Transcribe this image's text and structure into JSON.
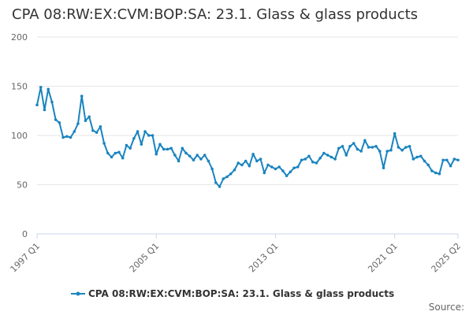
{
  "page": {
    "source_label": "Source:"
  },
  "chart_data": {
    "type": "line",
    "title": "CPA 08:RW:EX:CVM:BOP:SA: 23.1. Glass & glass products",
    "xlabel": "",
    "ylabel": "",
    "ylim": [
      0,
      200
    ],
    "yticks": [
      0,
      50,
      100,
      150,
      200
    ],
    "x_tick_labels": [
      "1997 Q1",
      "2005 Q1",
      "2013 Q1",
      "2021 Q1",
      "2025 Q2"
    ],
    "x_tick_index": [
      0,
      32,
      64,
      96,
      113
    ],
    "grid": "horizontal",
    "legend": "bottom-center",
    "colors": {
      "series": "#1a84bf",
      "grid": "#e6e6e6",
      "axis": "#ccd6eb"
    },
    "x": [
      "1997 Q1",
      "1997 Q2",
      "1997 Q3",
      "1997 Q4",
      "1998 Q1",
      "1998 Q2",
      "1998 Q3",
      "1998 Q4",
      "1999 Q1",
      "1999 Q2",
      "1999 Q3",
      "1999 Q4",
      "2000 Q1",
      "2000 Q2",
      "2000 Q3",
      "2000 Q4",
      "2001 Q1",
      "2001 Q2",
      "2001 Q3",
      "2001 Q4",
      "2002 Q1",
      "2002 Q2",
      "2002 Q3",
      "2002 Q4",
      "2003 Q1",
      "2003 Q2",
      "2003 Q3",
      "2003 Q4",
      "2004 Q1",
      "2004 Q2",
      "2004 Q3",
      "2004 Q4",
      "2005 Q1",
      "2005 Q2",
      "2005 Q3",
      "2005 Q4",
      "2006 Q1",
      "2006 Q2",
      "2006 Q3",
      "2006 Q4",
      "2007 Q1",
      "2007 Q2",
      "2007 Q3",
      "2007 Q4",
      "2008 Q1",
      "2008 Q2",
      "2008 Q3",
      "2008 Q4",
      "2009 Q1",
      "2009 Q2",
      "2009 Q3",
      "2009 Q4",
      "2010 Q1",
      "2010 Q2",
      "2010 Q3",
      "2010 Q4",
      "2011 Q1",
      "2011 Q2",
      "2011 Q3",
      "2011 Q4",
      "2012 Q1",
      "2012 Q2",
      "2012 Q3",
      "2012 Q4",
      "2013 Q1",
      "2013 Q2",
      "2013 Q3",
      "2013 Q4",
      "2014 Q1",
      "2014 Q2",
      "2014 Q3",
      "2014 Q4",
      "2015 Q1",
      "2015 Q2",
      "2015 Q3",
      "2015 Q4",
      "2016 Q1",
      "2016 Q2",
      "2016 Q3",
      "2016 Q4",
      "2017 Q1",
      "2017 Q2",
      "2017 Q3",
      "2017 Q4",
      "2018 Q1",
      "2018 Q2",
      "2018 Q3",
      "2018 Q4",
      "2019 Q1",
      "2019 Q2",
      "2019 Q3",
      "2019 Q4",
      "2020 Q1",
      "2020 Q2",
      "2020 Q3",
      "2020 Q4",
      "2021 Q1",
      "2021 Q2",
      "2021 Q3",
      "2021 Q4",
      "2022 Q1",
      "2022 Q2",
      "2022 Q3",
      "2022 Q4",
      "2023 Q1",
      "2023 Q2",
      "2023 Q3",
      "2023 Q4",
      "2024 Q1",
      "2024 Q2",
      "2024 Q3",
      "2024 Q4",
      "2025 Q1",
      "2025 Q2"
    ],
    "series": [
      {
        "name": "CPA 08:RW:EX:CVM:BOP:SA: 23.1. Glass & glass products",
        "values": [
          131,
          149,
          126,
          147,
          134,
          116,
          113,
          98,
          99,
          98,
          104,
          112,
          140,
          115,
          119,
          105,
          103,
          109,
          92,
          82,
          78,
          82,
          83,
          77,
          90,
          87,
          97,
          104,
          91,
          104,
          100,
          100,
          81,
          91,
          86,
          86,
          87,
          80,
          74,
          87,
          82,
          79,
          75,
          80,
          76,
          80,
          74,
          66,
          52,
          48,
          56,
          58,
          61,
          65,
          72,
          70,
          74,
          69,
          81,
          74,
          76,
          62,
          70,
          68,
          66,
          68,
          64,
          59,
          63,
          67,
          68,
          75,
          76,
          79,
          73,
          72,
          77,
          82,
          80,
          78,
          76,
          87,
          89,
          80,
          89,
          92,
          86,
          84,
          95,
          88,
          88,
          89,
          84,
          67,
          84,
          85,
          102,
          88,
          85,
          88,
          89,
          76,
          78,
          79,
          74,
          70,
          64,
          62,
          61,
          75,
          75,
          69,
          76,
          75
        ]
      }
    ]
  }
}
